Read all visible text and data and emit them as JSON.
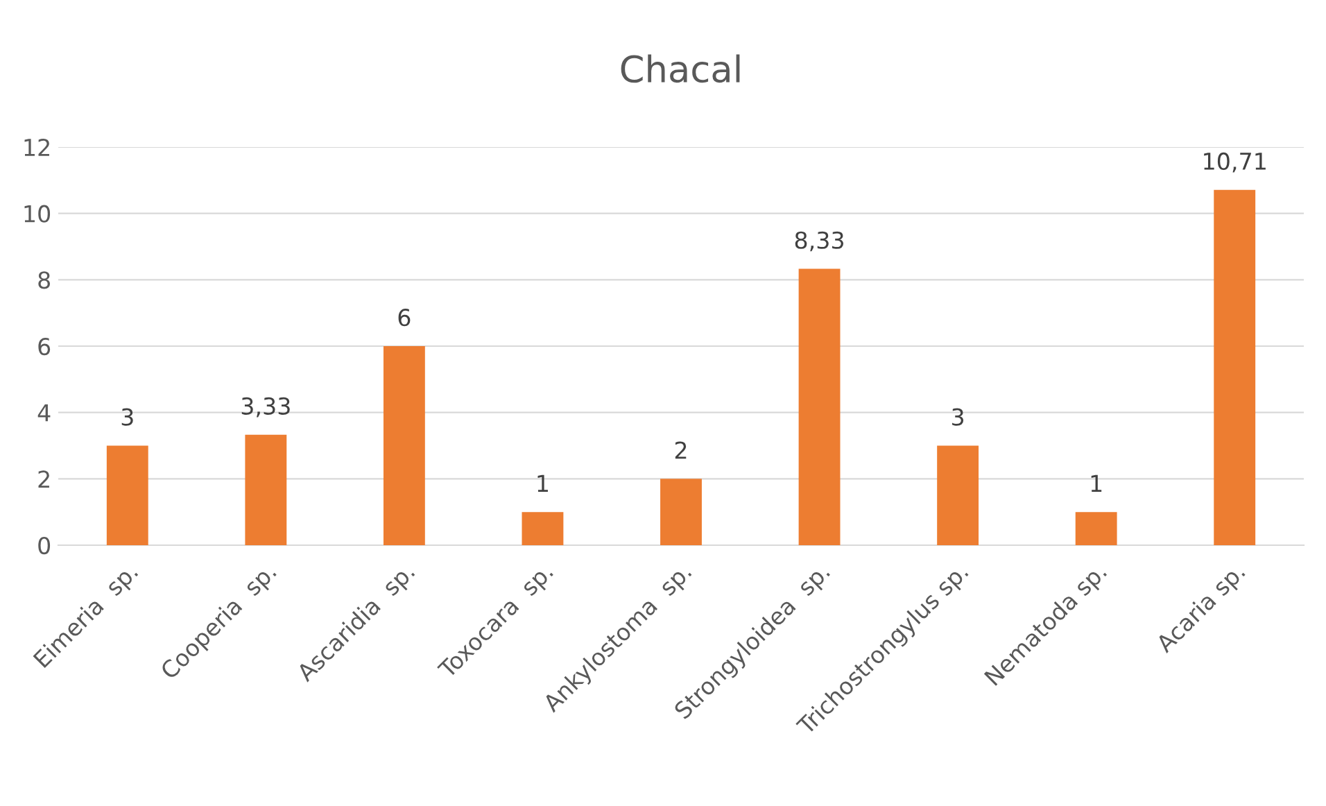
{
  "chart_data": {
    "type": "bar",
    "title": "Chacal",
    "categories": [
      "Eimeria  sp.",
      "Cooperia  sp.",
      "Ascaridia  sp.",
      "Toxocara  sp.",
      "Ankylostoma  sp.",
      "Strongyloidea  sp.",
      "Trichostrongylus sp.",
      "Nematoda sp.",
      "Acaria sp."
    ],
    "values": [
      3,
      3.33,
      6,
      1,
      2,
      8.33,
      3,
      1,
      10.71
    ],
    "value_labels": [
      "3",
      "3,33",
      "6",
      "1",
      "2",
      "8,33",
      "3",
      "1",
      "10,71"
    ],
    "color": "#ed7d31",
    "ylim": [
      0,
      12
    ],
    "yticks": [
      0,
      2,
      4,
      6,
      8,
      10,
      12
    ],
    "grid": "y",
    "legend": false
  }
}
